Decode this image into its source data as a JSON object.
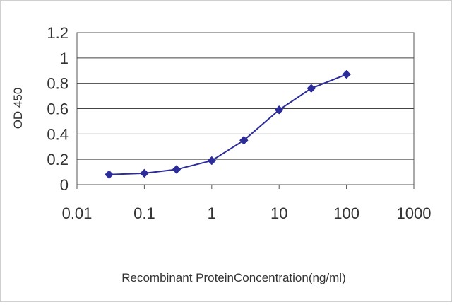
{
  "chart_data": {
    "type": "line",
    "title": "",
    "xlabel": "Recombinant ProteinConcentration(ng/ml)",
    "ylabel": "OD 450",
    "x_scale": "log",
    "xlim": [
      0.01,
      1000
    ],
    "ylim": [
      0,
      1.2
    ],
    "x_ticks": [
      "0.01",
      "0.1",
      "1",
      "10",
      "100",
      "1000"
    ],
    "y_ticks": [
      "0",
      "0.2",
      "0.4",
      "0.6",
      "0.8",
      "1",
      "1.2"
    ],
    "grid": "horizontal",
    "legend": "none",
    "series": [
      {
        "color": "#2c2c9a",
        "marker": "diamond",
        "x": [
          0.03,
          0.1,
          0.3,
          1,
          3,
          10,
          30,
          100
        ],
        "y": [
          0.08,
          0.09,
          0.12,
          0.19,
          0.35,
          0.59,
          0.76,
          0.87
        ]
      }
    ]
  }
}
